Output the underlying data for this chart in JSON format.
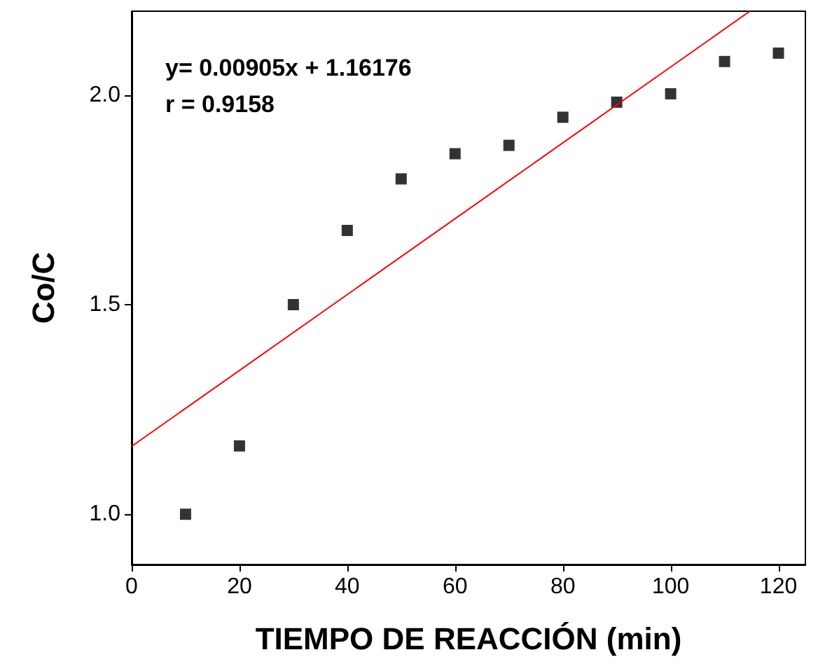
{
  "chart_data": {
    "type": "scatter",
    "xlabel": "TIEMPO DE REACCIÓN (min)",
    "ylabel": "Co/C",
    "annotations": [
      "y= 0.00905x + 1.16176",
      "r = 0.9158"
    ],
    "marker": "square",
    "grid": false,
    "xlim": [
      0,
      125
    ],
    "xticks": [
      0,
      20,
      40,
      60,
      80,
      100,
      120
    ],
    "ylim": [
      0.88,
      2.2
    ],
    "yticks": [
      {
        "value": 1,
        "label": "1.0"
      },
      {
        "value": 1.5,
        "label": "1.5"
      },
      {
        "value": 2,
        "label": "2.0"
      }
    ],
    "series": [
      {
        "color": "#000000",
        "x": [
          10,
          20,
          30,
          40,
          50,
          60,
          70,
          80,
          90,
          100,
          110,
          120
        ],
        "values": [
          1.0,
          1.163,
          1.5,
          1.677,
          1.8,
          1.86,
          1.88,
          1.947,
          1.983,
          2.003,
          2.08,
          2.1
        ]
      },
      {
        "type": "line",
        "color": "#ff0000",
        "marker": "none",
        "line_style": "solid",
        "x": [
          0,
          114.7
        ],
        "values": [
          1.162,
          2.2
        ]
      }
    ]
  }
}
